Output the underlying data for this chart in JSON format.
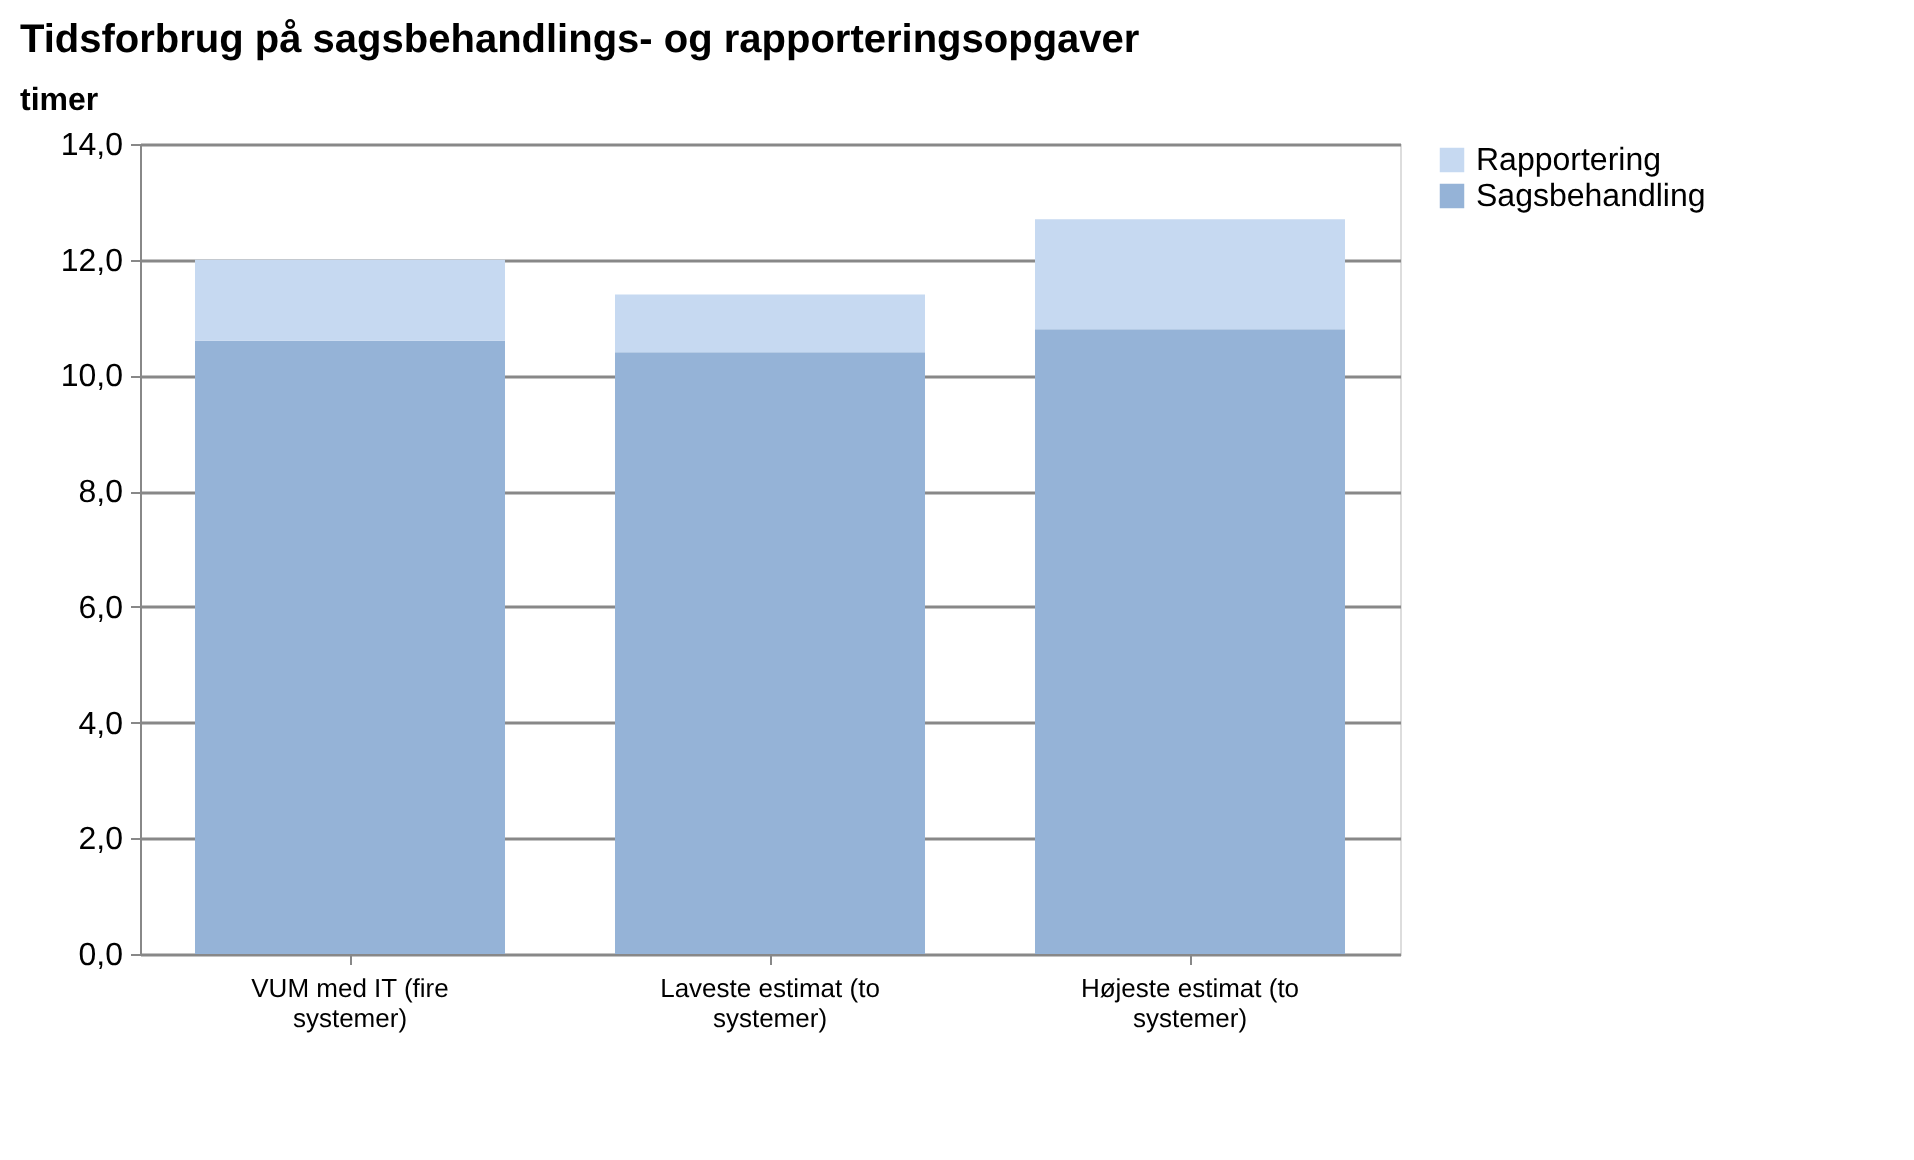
{
  "chart_data": {
    "type": "bar",
    "title": "Tidsforbrug på sagsbehandlings- og rapporteringsopgaver",
    "ylabel": "timer",
    "categories": [
      "VUM med IT (fire systemer)",
      "Laveste estimat (to systemer)",
      "Højeste estimat (to systemer)"
    ],
    "stacked": true,
    "series": [
      {
        "name": "Sagsbehandling",
        "color": "#95b3d7",
        "values": [
          10.6,
          10.4,
          10.8
        ]
      },
      {
        "name": "Rapportering",
        "color": "#c6d9f1",
        "values": [
          1.4,
          1.0,
          1.9
        ]
      }
    ],
    "ylim": [
      0,
      14
    ],
    "yticks": [
      {
        "value": 0,
        "label": "0,0"
      },
      {
        "value": 2,
        "label": "2,0"
      },
      {
        "value": 4,
        "label": "4,0"
      },
      {
        "value": 6,
        "label": "6,0"
      },
      {
        "value": 8,
        "label": "8,0"
      },
      {
        "value": 10,
        "label": "10,0"
      },
      {
        "value": 12,
        "label": "12,0"
      },
      {
        "value": 14,
        "label": "14,0"
      }
    ],
    "grid": "y",
    "legend": "right"
  }
}
